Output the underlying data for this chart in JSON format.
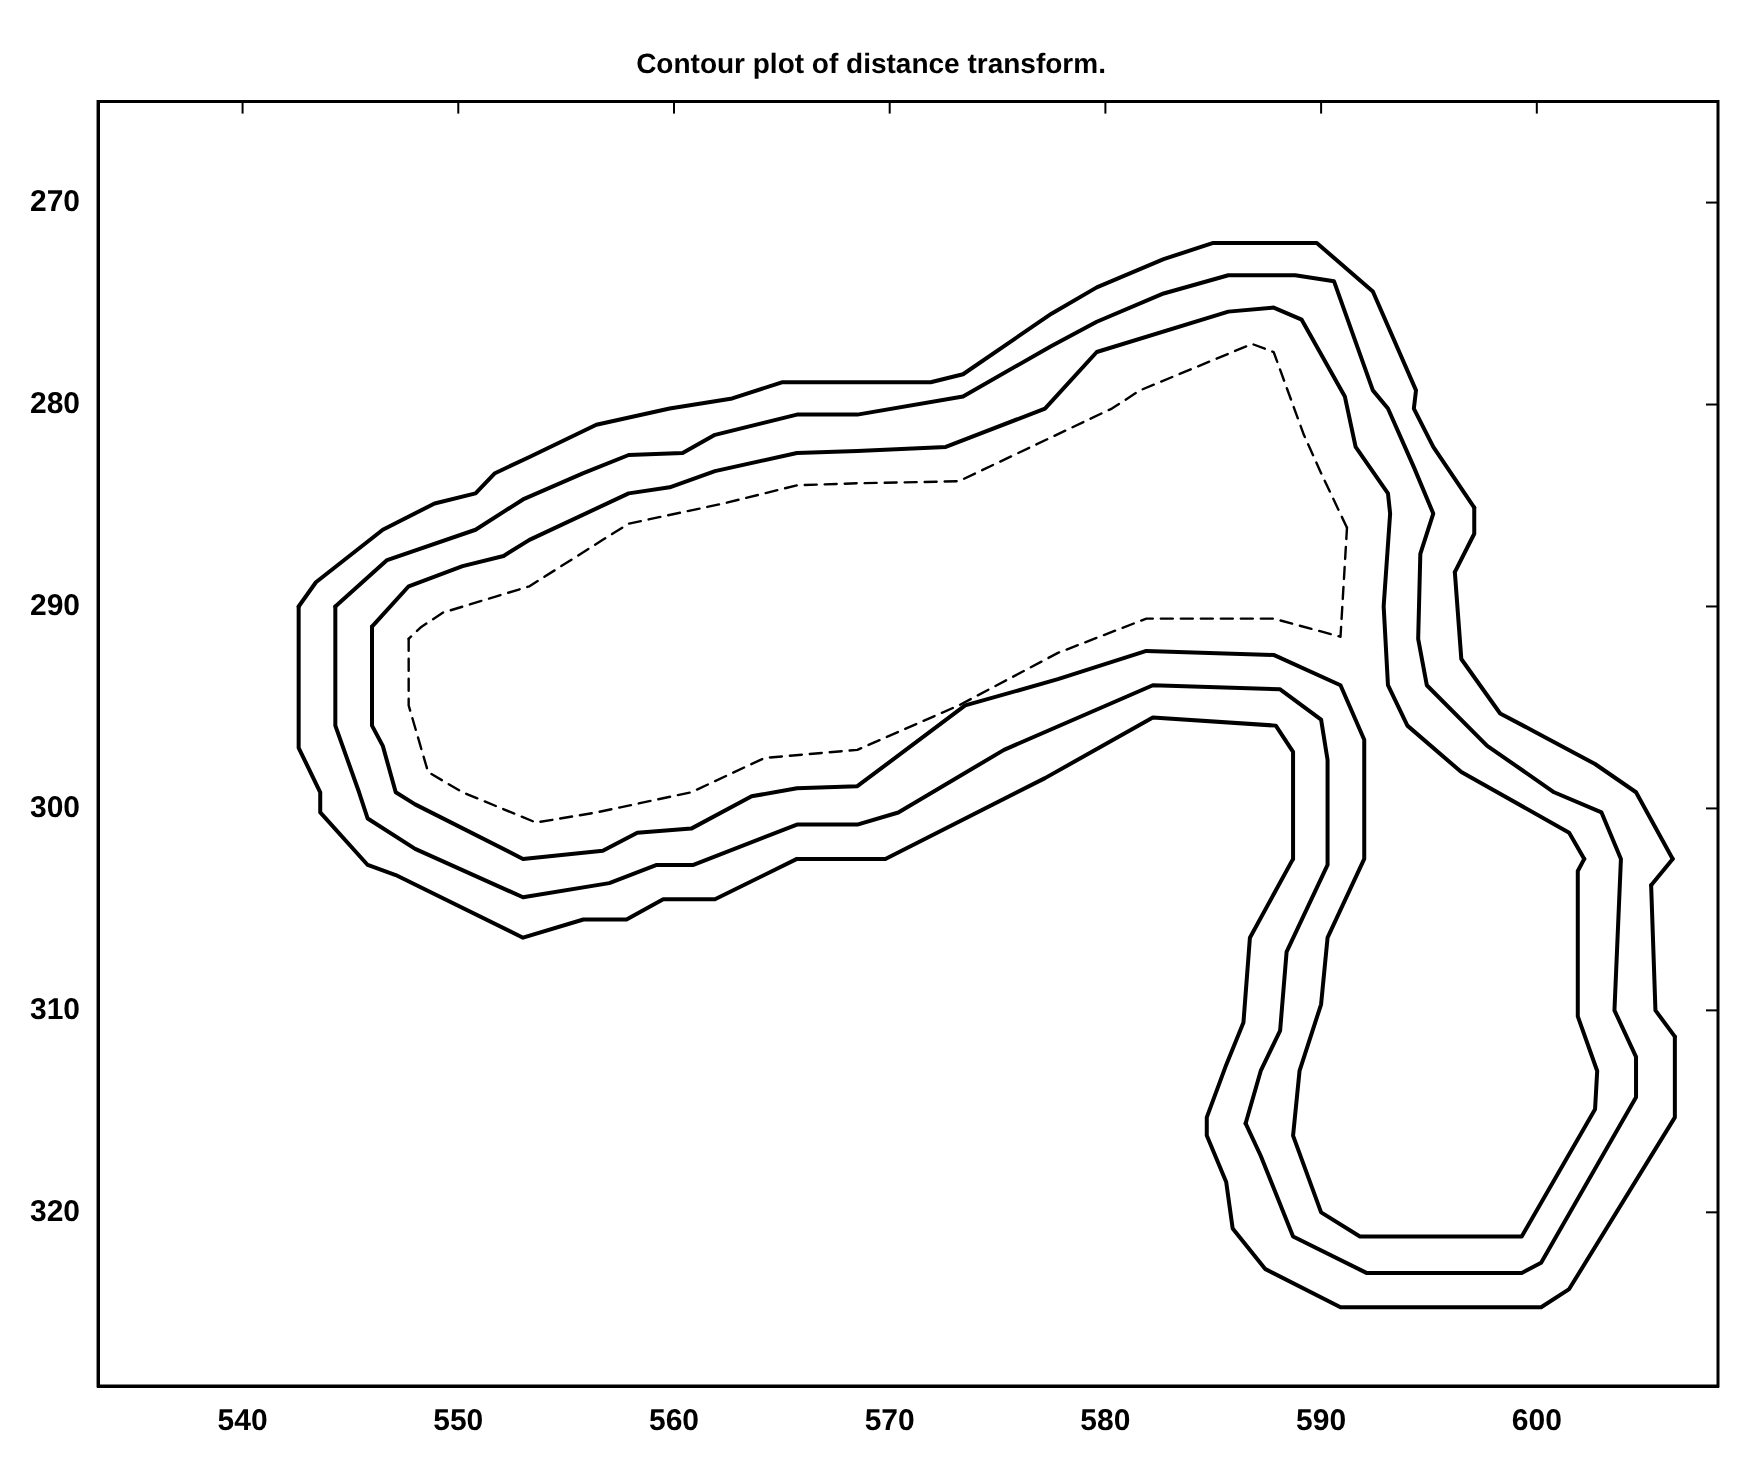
{
  "chart_data": {
    "type": "line",
    "title": "Contour plot of distance transform.",
    "xlim": [
      533.3,
      608.4
    ],
    "xticks": [
      540,
      550,
      560,
      570,
      580,
      590,
      600
    ],
    "ylim": [
      328.6,
      265
    ],
    "yticks": [
      270,
      280,
      290,
      300,
      310,
      320
    ],
    "grid": false,
    "legend": false,
    "marker": "none",
    "series": [
      {
        "color": "#000000",
        "line_style": "solid",
        "x": [
          542.6,
          542.6,
          543.6,
          543.6,
          545.8,
          547.1,
          553,
          555.8,
          557.8,
          559.5,
          561.9,
          565.7,
          568.5,
          569.8,
          577.2,
          582.2,
          587.9,
          588.7,
          588.7
        ],
        "values": [
          290,
          297,
          299.2,
          300.2,
          302.8,
          303.3,
          306.4,
          305.5,
          305.5,
          304.5,
          304.5,
          302.5,
          302.5,
          302.5,
          298.5,
          295.5,
          295.9,
          297.2,
          302.5
        ]
      },
      {
        "color": "#000000",
        "line_style": "solid",
        "x": [
          588.7,
          586.7,
          586.4,
          585.6,
          584.7,
          584.7,
          585.6,
          585.9,
          587.4,
          590.9,
          600.2,
          601.5,
          606.4,
          606.4
        ],
        "values": [
          302.5,
          306.4,
          310.6,
          312.7,
          315.3,
          316.2,
          318.5,
          320.8,
          322.8,
          324.7,
          324.7,
          323.8,
          315.3,
          311.3
        ]
      },
      {
        "color": "#000000",
        "line_style": "solid",
        "x": [
          606.4,
          605.5,
          605.3
        ],
        "values": [
          311.3,
          310,
          303.8
        ]
      },
      {
        "color": "#000000",
        "line_style": "solid",
        "x": [
          605.3,
          606.3
        ],
        "values": [
          303.8,
          302.5
        ]
      },
      {
        "color": "#000000",
        "line_style": "solid",
        "x": [
          606.3,
          604.6,
          602.7,
          599.9,
          598.3,
          596.5,
          596.2
        ],
        "values": [
          302.5,
          299.2,
          297.8,
          296.2,
          295.3,
          292.6,
          288.3
        ]
      },
      {
        "color": "#000000",
        "line_style": "solid",
        "x": [
          596.2,
          597.1,
          597.1
        ],
        "values": [
          288.3,
          286.4,
          285.1
        ]
      },
      {
        "color": "#000000",
        "line_style": "solid",
        "x": [
          597.1,
          595.2,
          594.3,
          594.4,
          592.4,
          589.8,
          585,
          582.7,
          579.6,
          577.5,
          573.4,
          571.9,
          565,
          562.7,
          559.8,
          556.4,
          553.3,
          551.7,
          550.8,
          548.9,
          546.5,
          543.4,
          542.6
        ],
        "values": [
          285.1,
          282.1,
          280.2,
          279.3,
          274.4,
          272,
          272,
          272.8,
          274.2,
          275.5,
          278.5,
          278.9,
          278.9,
          279.7,
          280.2,
          281,
          282.6,
          283.4,
          284.4,
          284.9,
          286.2,
          288.8,
          290
        ]
      },
      {
        "color": "#000000",
        "line_style": "solid",
        "x": [
          544.3,
          544.3,
          545.4,
          545.8,
          548,
          553,
          557,
          559.2,
          560.9,
          565.7,
          568.5,
          570.4,
          575.3,
          582.2,
          588.1,
          590,
          590.3,
          590.3,
          588.4,
          588.1,
          587.2,
          586.5
        ],
        "values": [
          290,
          295.9,
          299.2,
          300.5,
          302,
          304.4,
          303.7,
          302.8,
          302.8,
          300.8,
          300.8,
          300.2,
          297.1,
          293.9,
          294.1,
          295.6,
          297.6,
          302.8,
          307.1,
          311,
          313,
          315.6
        ]
      },
      {
        "color": "#000000",
        "line_style": "solid",
        "x": [
          586.5,
          587.2,
          588.7,
          592.1,
          599.3,
          600.2,
          604.6,
          604.6,
          603.6,
          603.9,
          603,
          600.8,
          597.7,
          594.9,
          594.5,
          594.6,
          595.2,
          594.3,
          593.1,
          592.4,
          590.6,
          588.8,
          585.7,
          582.7,
          579.6,
          577.5,
          573.4,
          568.5,
          565.7,
          561.9,
          560.4,
          557.9,
          555.8,
          553,
          550.8,
          546.7,
          544.3
        ],
        "values": [
          315.6,
          317.2,
          321.2,
          323,
          323,
          322.5,
          314.3,
          312.3,
          310,
          302.5,
          300.2,
          299.2,
          296.9,
          293.9,
          291.6,
          287.4,
          285.4,
          283.1,
          280.2,
          279.3,
          273.9,
          273.6,
          273.6,
          274.5,
          275.9,
          277.1,
          279.6,
          280.5,
          280.5,
          281.5,
          282.4,
          282.5,
          283.4,
          284.7,
          286.2,
          287.7,
          290
        ]
      },
      {
        "color": "#000000",
        "line_style": "solid",
        "x": [
          546,
          547.7,
          550.2,
          552.1,
          553.3,
          557.9,
          559.8,
          561.9,
          565.7,
          568.5,
          572.6,
          577.2,
          579.6,
          585.7,
          587.8,
          589.1,
          591.1,
          591.6,
          593.1,
          593.2,
          592.9,
          593.1,
          594,
          596.5,
          601.5,
          602.2
        ],
        "values": [
          291,
          289,
          288,
          287.5,
          286.7,
          284.4,
          284.1,
          283.3,
          282.4,
          282.3,
          282.1,
          280.2,
          277.4,
          275.4,
          275.2,
          275.8,
          279.6,
          282.1,
          284.4,
          285.4,
          290,
          293.9,
          295.9,
          298.2,
          301.2,
          302.5
        ]
      },
      {
        "color": "#000000",
        "line_style": "solid",
        "x": [
          602.2,
          601.9,
          601.9,
          602.8,
          602.7,
          599.3,
          591.8,
          590,
          588.7,
          589,
          590,
          590.3,
          592,
          592,
          590.9,
          587.8,
          581.9,
          577.8,
          573.5,
          568.5,
          565.7,
          563.6,
          560.8,
          558.3,
          556.7,
          553,
          548,
          547.1,
          546.5,
          546,
          546
        ],
        "values": [
          302.5,
          303.1,
          310.3,
          313,
          314.9,
          321.2,
          321.2,
          320,
          316.2,
          313,
          309.7,
          306.4,
          302.5,
          296.6,
          293.9,
          292.4,
          292.2,
          293.6,
          294.9,
          298.9,
          299,
          299.4,
          301,
          301.2,
          302.1,
          302.5,
          299.8,
          299.2,
          296.9,
          295.9,
          291
        ]
      },
      {
        "color": "#000000",
        "line_style": "dashed",
        "x": [
          547.7,
          547.7,
          548.6,
          550.2,
          553.6,
          556.4,
          560.8,
          564.2,
          568.5,
          573.2,
          577.8,
          581.9,
          587.8,
          590.9,
          591.2
        ],
        "values": [
          291.6,
          294.9,
          298.2,
          299.2,
          300.7,
          300.2,
          299.2,
          297.5,
          297.1,
          294.9,
          292.3,
          290.6,
          290.6,
          291.5,
          286.1
        ]
      },
      {
        "color": "#000000",
        "line_style": "dashed",
        "x": [
          591.2,
          590,
          589.2,
          587.8,
          586.8,
          581.6,
          580.3,
          573.2,
          568.5,
          565.7,
          562.3,
          557.9,
          556.7,
          553.3,
          549.3,
          548.3,
          547.7
        ],
        "values": [
          286.1,
          283.4,
          281.5,
          277.4,
          277,
          279.3,
          280.2,
          283.8,
          283.9,
          284,
          284.9,
          285.9,
          286.7,
          289,
          290.3,
          291,
          291.6
        ]
      }
    ]
  }
}
